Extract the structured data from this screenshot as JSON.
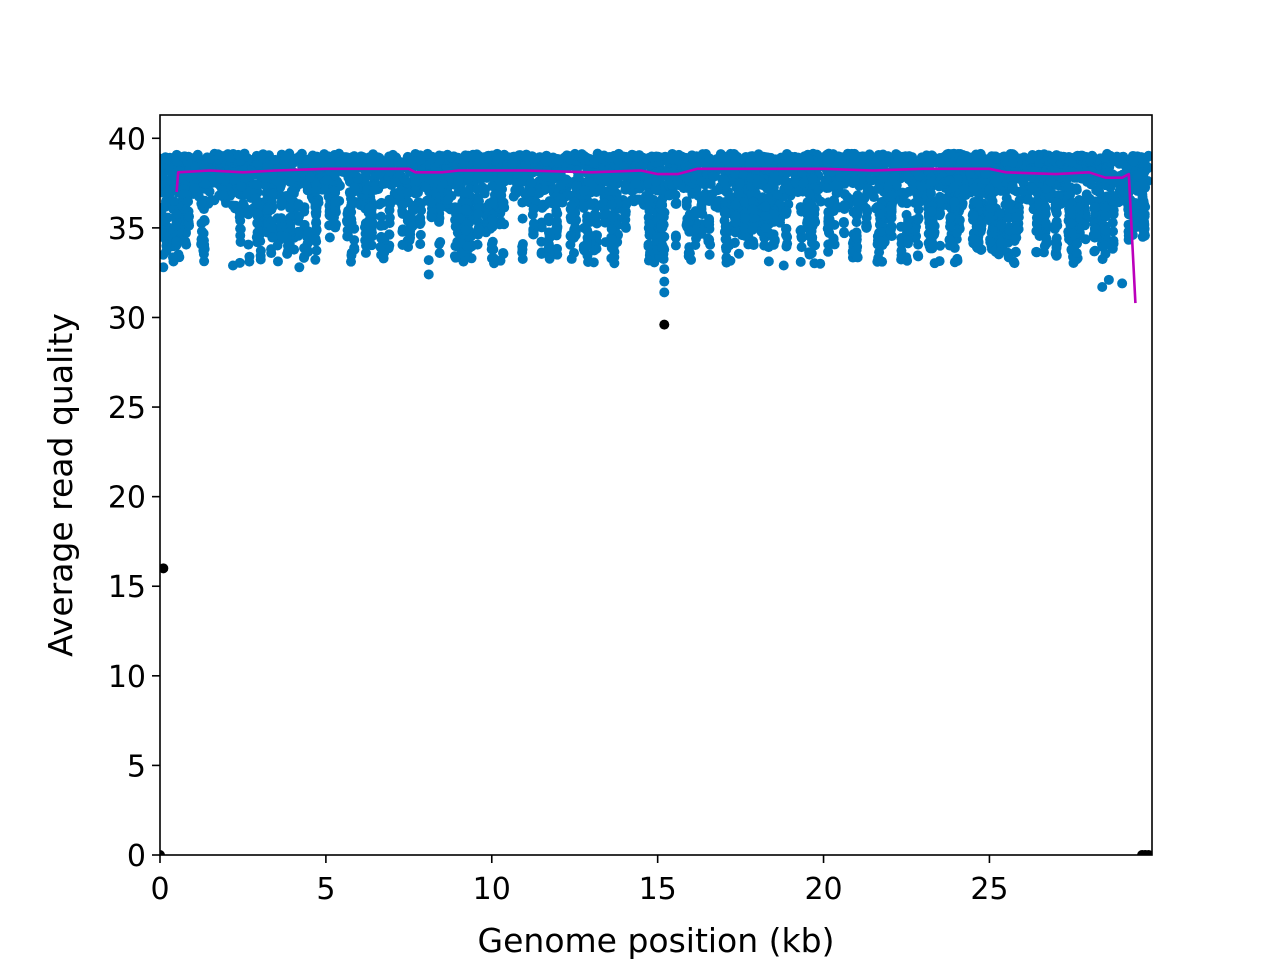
{
  "chart_data": {
    "type": "scatter",
    "title": "",
    "xlabel": "Genome position (kb)",
    "ylabel": "Average read quality",
    "xlim": [
      0,
      29.9
    ],
    "ylim": [
      0,
      41.3
    ],
    "xticks": [
      0,
      5,
      10,
      15,
      20,
      25
    ],
    "yticks": [
      0,
      5,
      10,
      15,
      20,
      25,
      30,
      35,
      40
    ],
    "grid": false,
    "colors": {
      "points": "#0077bb",
      "outliers": "#000000",
      "trend": "#bb00bb"
    },
    "series": [
      {
        "kind": "scatter-band",
        "x_range": [
          0,
          29.8
        ],
        "y_upper": 39,
        "y_dense_lower": 36,
        "y_sparse_lower": 33
      },
      {
        "kind": "scatter",
        "x": [
          0.1,
          0.1,
          2.2,
          4.2,
          8.1,
          8.1,
          15.2,
          15.2,
          15.2,
          18.8,
          19.9,
          29.0,
          28.4,
          28.6
        ],
        "y": [
          33.5,
          32.8,
          32.9,
          32.8,
          32.4,
          33.2,
          32.0,
          31.4,
          32.7,
          32.9,
          33.0,
          31.9,
          31.7,
          32.1
        ]
      },
      {
        "kind": "scatter",
        "x": [
          0.1,
          15.2,
          0.0,
          29.6,
          29.7,
          29.8
        ],
        "y": [
          16.0,
          29.6,
          0.0,
          0.0,
          0.0,
          0.0
        ]
      },
      {
        "kind": "line",
        "x": [
          0.5,
          0.55,
          1.5,
          2.5,
          3.5,
          5.0,
          6.5,
          7.5,
          7.7,
          8.5,
          9.0,
          11.0,
          13.0,
          14.5,
          15.0,
          15.6,
          16.2,
          18.0,
          20.0,
          21.5,
          23.0,
          25.0,
          25.5,
          27.0,
          28.0,
          28.5,
          29.0,
          29.2,
          29.4
        ],
        "y": [
          37.0,
          38.1,
          38.2,
          38.1,
          38.2,
          38.3,
          38.3,
          38.3,
          38.1,
          38.1,
          38.2,
          38.2,
          38.1,
          38.2,
          38.0,
          38.0,
          38.3,
          38.3,
          38.3,
          38.2,
          38.3,
          38.3,
          38.1,
          38.0,
          38.1,
          37.8,
          37.8,
          38.0,
          30.8
        ]
      }
    ]
  }
}
